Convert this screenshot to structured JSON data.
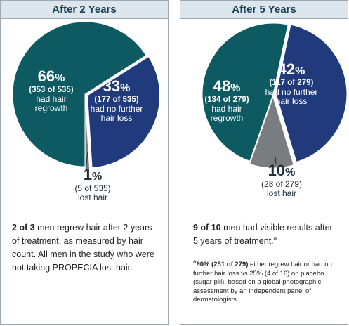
{
  "colors": {
    "teal": "#0d5a63",
    "navy": "#213a7c",
    "gray": "#7a7d80",
    "header_bg": "#dde6ec",
    "header_text": "#173f57"
  },
  "chart_data": [
    {
      "type": "pie",
      "title": "After 2 Years",
      "slices": [
        {
          "value": 66,
          "percent_label": "66",
          "count_label": "(353 of 535)",
          "caption": "had hair regrowth",
          "color": "#0d5a63"
        },
        {
          "value": 33,
          "percent_label": "33",
          "count_label": "(177 of 535)",
          "caption": "had no further hair loss",
          "color": "#213a7c"
        },
        {
          "value": 1,
          "percent_label": "1",
          "count_label": "(5 of 535)",
          "caption": "lost hair",
          "color": "#7a7d80"
        }
      ]
    },
    {
      "type": "pie",
      "title": "After 5 Years",
      "slices": [
        {
          "value": 48,
          "percent_label": "48",
          "count_label": "(134 of 279)",
          "caption": "had hair regrowth",
          "color": "#0d5a63"
        },
        {
          "value": 42,
          "percent_label": "42",
          "count_label": "(117 of 279)",
          "caption": "had no further hair loss",
          "color": "#213a7c"
        },
        {
          "value": 10,
          "percent_label": "10",
          "count_label": "(28 of 279)",
          "caption": "lost hair",
          "color": "#7a7d80"
        }
      ]
    }
  ],
  "percent_sign": "%",
  "left_text": {
    "lead": "2 of 3",
    "body": " men regrew hair after 2 years of treatment, as measured by hair count. All men in the study who were not taking PROPECIA lost hair."
  },
  "right_text": {
    "lead": "9 of 10",
    "body": " men had visible results after 5 years of treatment.",
    "marker": "a"
  },
  "footnote": {
    "marker": "a",
    "lead": "90% (251 of 279)",
    "body": " either regrew hair or had no further hair loss vs 25% (4 of 16) on placebo (sugar pill), based on a global photographic assessment by an independent panel of dermatologists."
  }
}
